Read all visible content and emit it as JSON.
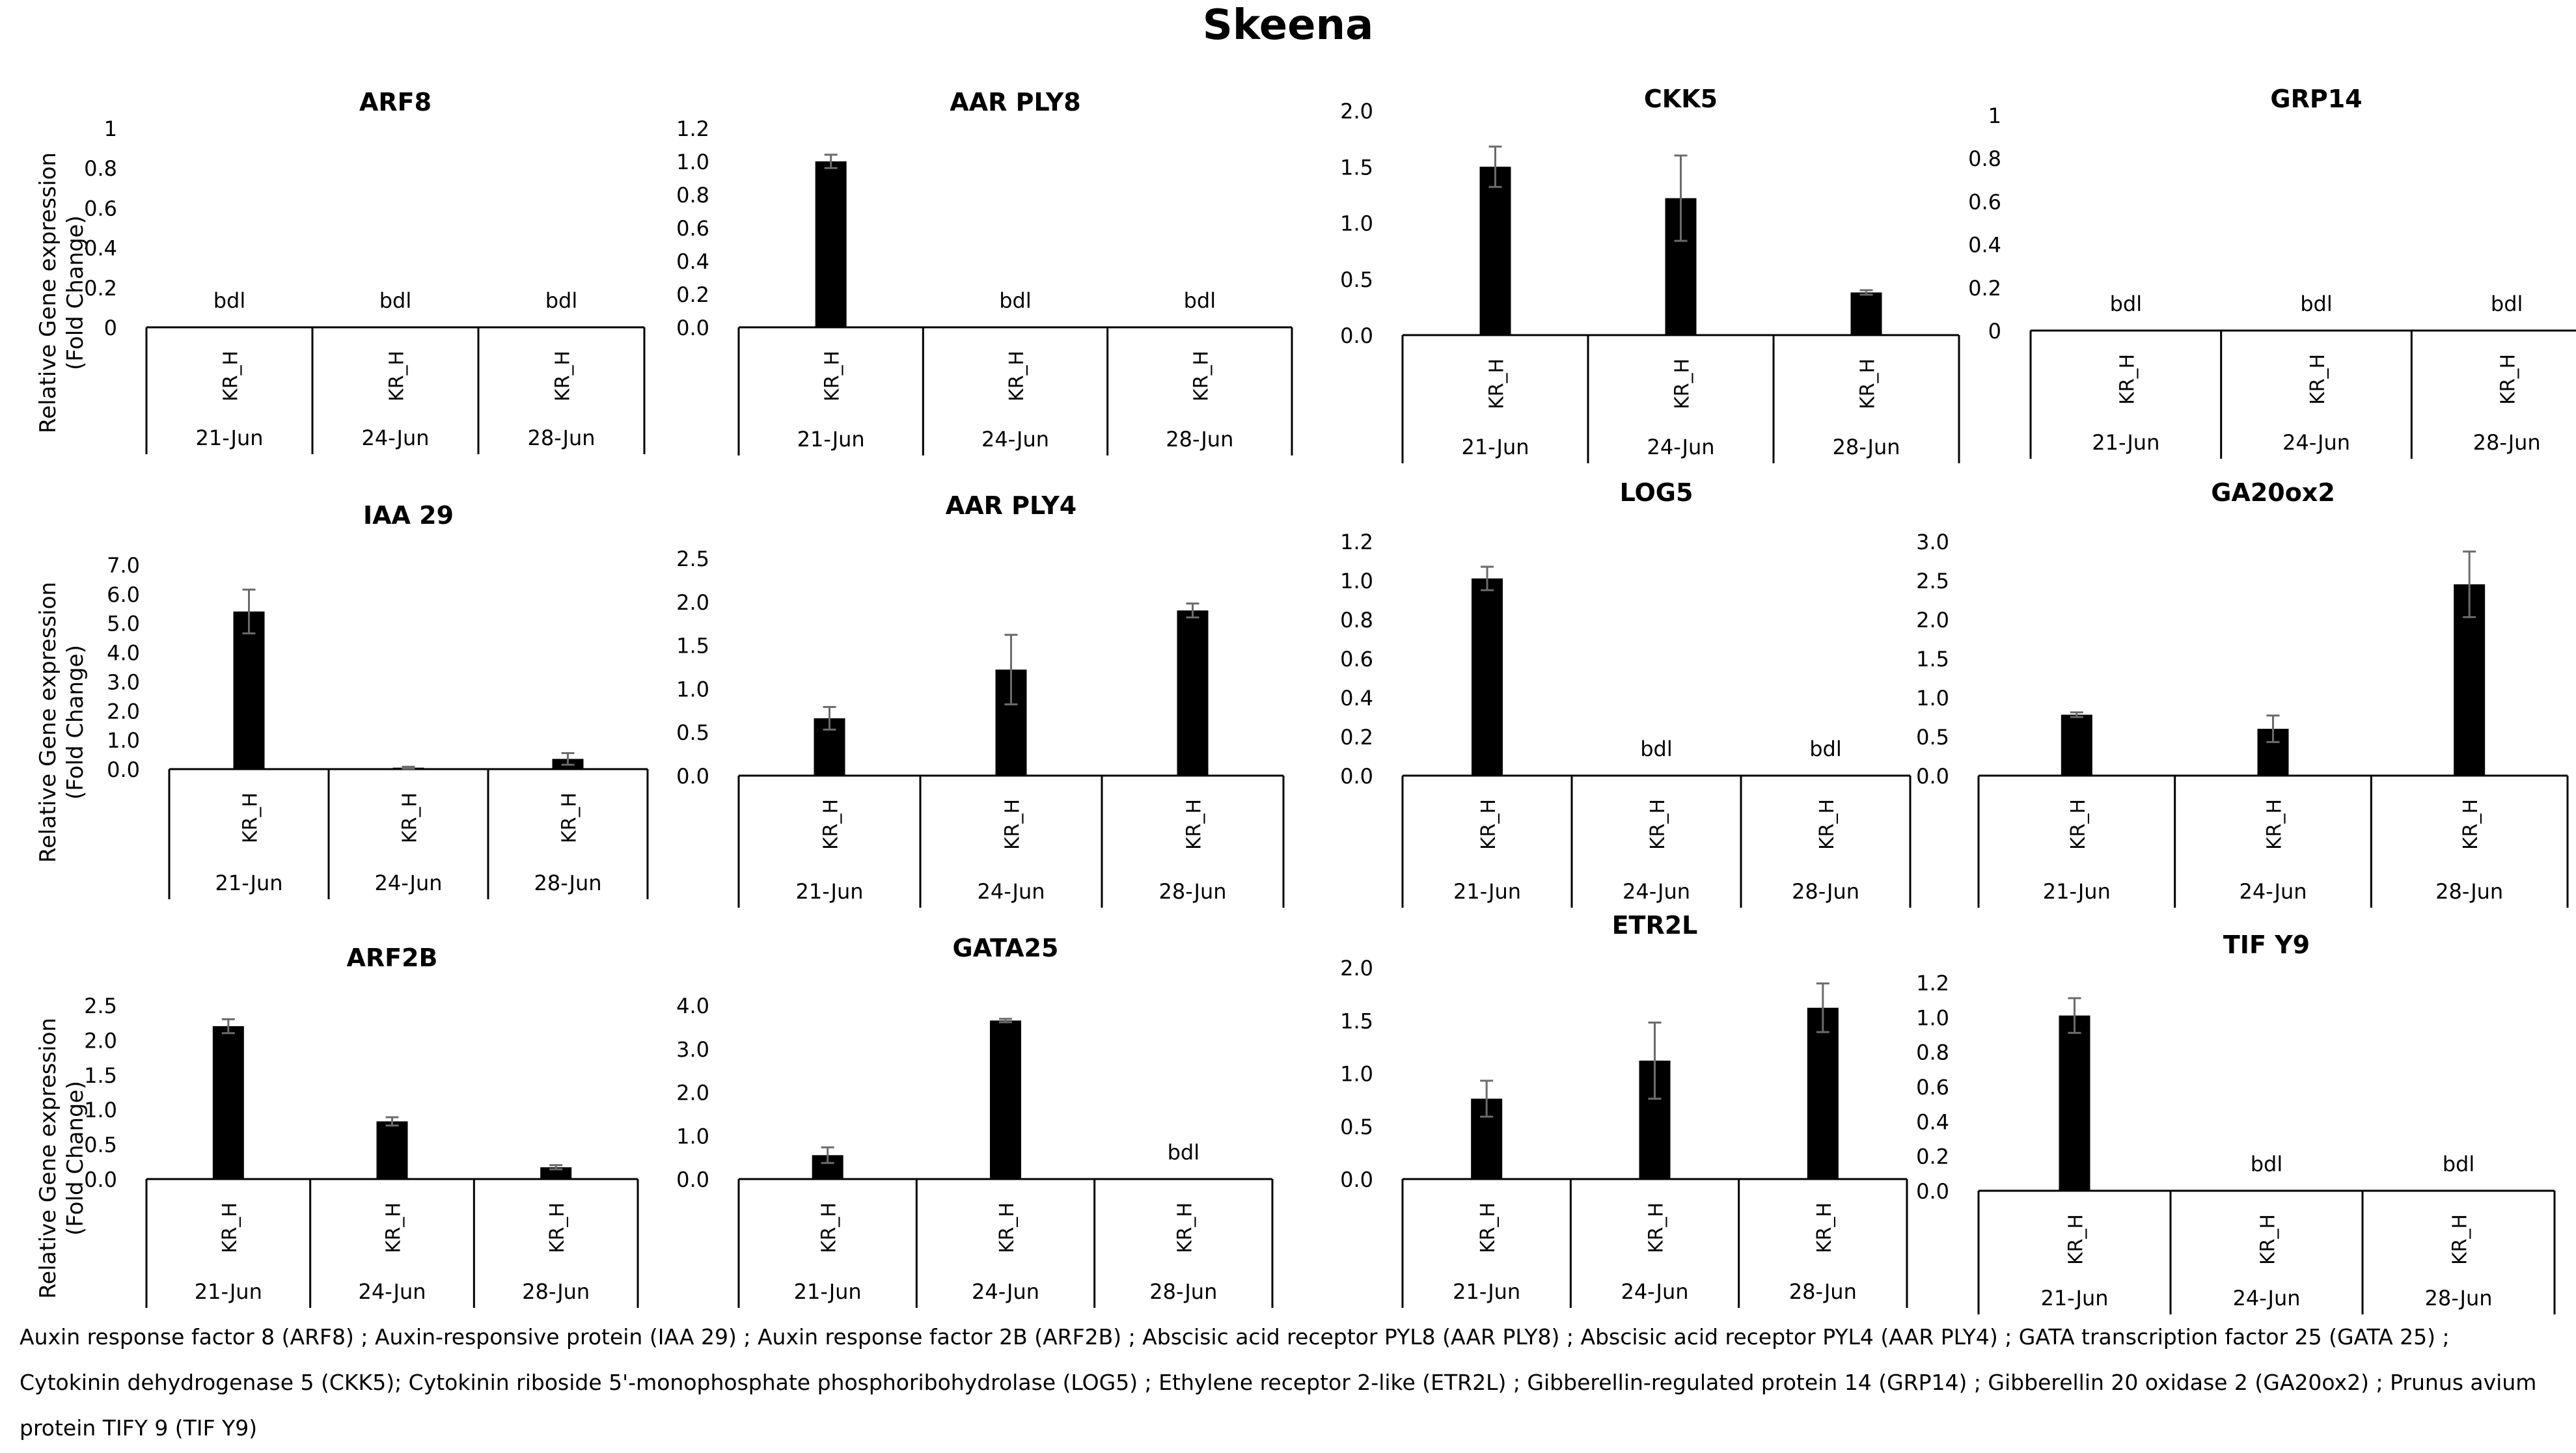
{
  "figure_title": "Skeena",
  "y_axis_label": [
    "Relative Gene expression",
    "(Fold Change)"
  ],
  "caption": "Auxin response factor 8 (ARF8) ; Auxin-responsive protein (IAA 29) ; Auxin response factor 2B (ARF2B) ; Abscisic acid receptor PYL8 (AAR PLY8) ; Abscisic acid receptor PYL4 (AAR PLY4) ; GATA transcription factor 25 (GATA 25) ; Cytokinin dehydrogenase 5 (CKK5); Cytokinin riboside 5'-monophosphate phosphoribohydrolase (LOG5) ; Ethylene receptor 2-like (ETR2L) ; Gibberellin-regulated protein 14 (GRP14) ; Gibberellin 20 oxidase 2 (GA20ox2) ; Prunus avium protein TIFY 9 (TIF Y9)",
  "chart_data": [
    {
      "type": "bar",
      "title": "ARF8",
      "ylim": [
        0,
        1
      ],
      "yticks": [
        "0",
        "0.2",
        "0.4",
        "0.6",
        "0.8",
        "1"
      ],
      "categories": [
        "21-Jun",
        "24-Jun",
        "28-Jun"
      ],
      "sample_label": "KR_H",
      "values": [
        null,
        null,
        null
      ],
      "errors": [
        null,
        null,
        null
      ],
      "bdl": [
        true,
        true,
        true
      ],
      "bdl_label": "bdl"
    },
    {
      "type": "bar",
      "title": "AAR PLY8",
      "ylim": [
        0,
        1.2
      ],
      "yticks": [
        "0.0",
        "0.2",
        "0.4",
        "0.6",
        "0.8",
        "1.0",
        "1.2"
      ],
      "categories": [
        "21-Jun",
        "24-Jun",
        "28-Jun"
      ],
      "sample_label": "KR_H",
      "values": [
        1.0,
        null,
        null
      ],
      "errors": [
        0.04,
        null,
        null
      ],
      "bdl": [
        false,
        true,
        true
      ],
      "bdl_label": "bdl"
    },
    {
      "type": "bar",
      "title": "CKK5",
      "ylim": [
        0,
        2.0
      ],
      "yticks": [
        "0.0",
        "0.5",
        "1.0",
        "1.5",
        "2.0"
      ],
      "categories": [
        "21-Jun",
        "24-Jun",
        "28-Jun"
      ],
      "sample_label": "KR_H",
      "values": [
        1.5,
        1.22,
        0.38
      ],
      "errors": [
        0.18,
        0.38,
        0.02
      ],
      "bdl": [
        false,
        false,
        false
      ],
      "bdl_label": "bdl"
    },
    {
      "type": "bar",
      "title": "GRP14",
      "ylim": [
        0,
        1
      ],
      "yticks": [
        "0",
        "0.2",
        "0.4",
        "0.6",
        "0.8",
        "1"
      ],
      "categories": [
        "21-Jun",
        "24-Jun",
        "28-Jun"
      ],
      "sample_label": "KR_H",
      "values": [
        null,
        null,
        null
      ],
      "errors": [
        null,
        null,
        null
      ],
      "bdl": [
        true,
        true,
        true
      ],
      "bdl_label": "bdl"
    },
    {
      "type": "bar",
      "title": "IAA 29",
      "ylim": [
        0,
        7.0
      ],
      "yticks": [
        "0.0",
        "1.0",
        "2.0",
        "3.0",
        "4.0",
        "5.0",
        "6.0",
        "7.0"
      ],
      "categories": [
        "21-Jun",
        "24-Jun",
        "28-Jun"
      ],
      "sample_label": "KR_H",
      "values": [
        5.4,
        0.05,
        0.35
      ],
      "errors": [
        0.75,
        0.03,
        0.2
      ],
      "bdl": [
        false,
        false,
        false
      ],
      "bdl_label": "bdl"
    },
    {
      "type": "bar",
      "title": "AAR PLY4",
      "ylim": [
        0,
        2.5
      ],
      "yticks": [
        "0.0",
        "0.5",
        "1.0",
        "1.5",
        "2.0",
        "2.5"
      ],
      "categories": [
        "21-Jun",
        "24-Jun",
        "28-Jun"
      ],
      "sample_label": "KR_H",
      "values": [
        0.66,
        1.22,
        1.9
      ],
      "errors": [
        0.13,
        0.4,
        0.08
      ],
      "bdl": [
        false,
        false,
        false
      ],
      "bdl_label": "bdl"
    },
    {
      "type": "bar",
      "title": "LOG5",
      "ylim": [
        0,
        1.2
      ],
      "yticks": [
        "0.0",
        "0.2",
        "0.4",
        "0.6",
        "0.8",
        "1.0",
        "1.2"
      ],
      "categories": [
        "21-Jun",
        "24-Jun",
        "28-Jun"
      ],
      "sample_label": "KR_H",
      "values": [
        1.01,
        null,
        null
      ],
      "errors": [
        0.06,
        null,
        null
      ],
      "bdl": [
        false,
        true,
        true
      ],
      "bdl_label": "bdl"
    },
    {
      "type": "bar",
      "title": "GA20ox2",
      "ylim": [
        0,
        3.0
      ],
      "yticks": [
        "0.0",
        "0.5",
        "1.0",
        "1.5",
        "2.0",
        "2.5",
        "3.0"
      ],
      "categories": [
        "21-Jun",
        "24-Jun",
        "28-Jun"
      ],
      "sample_label": "KR_H",
      "values": [
        0.78,
        0.6,
        2.45
      ],
      "errors": [
        0.03,
        0.17,
        0.42
      ],
      "bdl": [
        false,
        false,
        false
      ],
      "bdl_label": "bdl"
    },
    {
      "type": "bar",
      "title": "ARF2B",
      "ylim": [
        0,
        2.5
      ],
      "yticks": [
        "0.0",
        "0.5",
        "1.0",
        "1.5",
        "2.0",
        "2.5"
      ],
      "categories": [
        "21-Jun",
        "24-Jun",
        "28-Jun"
      ],
      "sample_label": "KR_H",
      "values": [
        2.2,
        0.83,
        0.17
      ],
      "errors": [
        0.1,
        0.06,
        0.03
      ],
      "bdl": [
        false,
        false,
        false
      ],
      "bdl_label": "bdl"
    },
    {
      "type": "bar",
      "title": "GATA25",
      "ylim": [
        0,
        4.0
      ],
      "yticks": [
        "0.0",
        "1.0",
        "2.0",
        "3.0",
        "4.0"
      ],
      "categories": [
        "21-Jun",
        "24-Jun",
        "28-Jun"
      ],
      "sample_label": "KR_H",
      "values": [
        0.55,
        3.65,
        null
      ],
      "errors": [
        0.18,
        0.04,
        null
      ],
      "bdl": [
        false,
        false,
        true
      ],
      "bdl_label": "bdl"
    },
    {
      "type": "bar",
      "title": "ETR2L",
      "ylim": [
        0,
        2.0
      ],
      "yticks": [
        "0.0",
        "0.5",
        "1.0",
        "1.5",
        "2.0"
      ],
      "categories": [
        "21-Jun",
        "24-Jun",
        "28-Jun"
      ],
      "sample_label": "KR_H",
      "values": [
        0.76,
        1.12,
        1.62
      ],
      "errors": [
        0.17,
        0.36,
        0.23
      ],
      "bdl": [
        false,
        false,
        false
      ],
      "bdl_label": "bdl"
    },
    {
      "type": "bar",
      "title": "TIF Y9",
      "ylim": [
        0,
        1.2
      ],
      "yticks": [
        "0.0",
        "0.2",
        "0.4",
        "0.6",
        "0.8",
        "1.0",
        "1.2"
      ],
      "categories": [
        "21-Jun",
        "24-Jun",
        "28-Jun"
      ],
      "sample_label": "KR_H",
      "values": [
        1.01,
        null,
        null
      ],
      "errors": [
        0.1,
        null,
        null
      ],
      "bdl": [
        false,
        true,
        true
      ],
      "bdl_label": "bdl"
    }
  ]
}
